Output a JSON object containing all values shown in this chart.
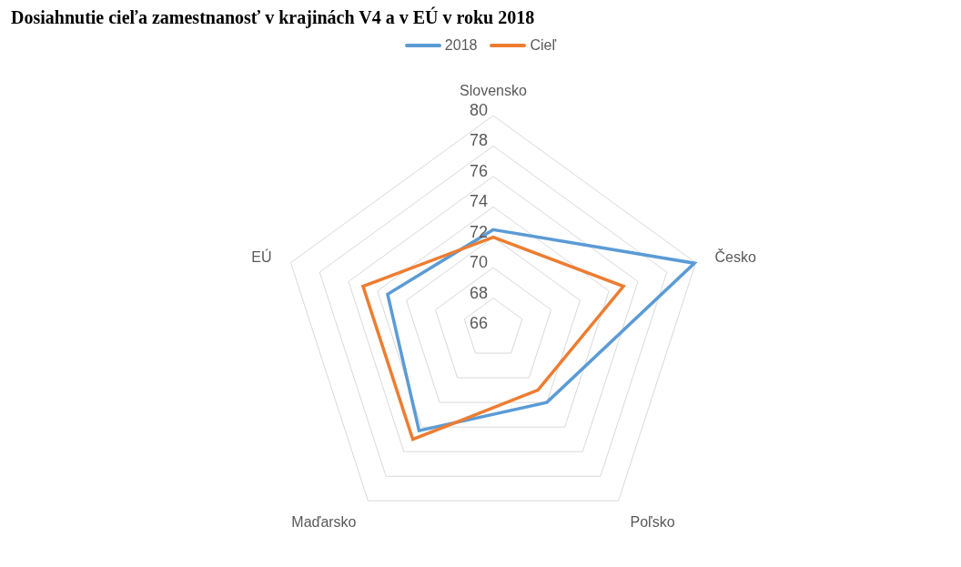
{
  "chart_data": {
    "type": "radar",
    "title": "Dosiahnutie cieľa zamestnanosť v krajinách V4 a v EÚ v roku 2018",
    "categories": [
      "Slovensko",
      "Česko",
      "Poľsko",
      "Maďarsko",
      "EÚ"
    ],
    "series": [
      {
        "name": "2018",
        "color": "#5b9bd5",
        "values": [
          72.5,
          79.9,
          72,
          74.3,
          73.3
        ]
      },
      {
        "name": "Cieľ",
        "color": "#ed7d31",
        "values": [
          72,
          75,
          71,
          75,
          75
        ]
      }
    ],
    "ylim": [
      66,
      80
    ],
    "yticks": [
      66,
      68,
      70,
      72,
      74,
      76,
      78,
      80
    ],
    "grid": true,
    "legend": "top",
    "marker": "none"
  }
}
